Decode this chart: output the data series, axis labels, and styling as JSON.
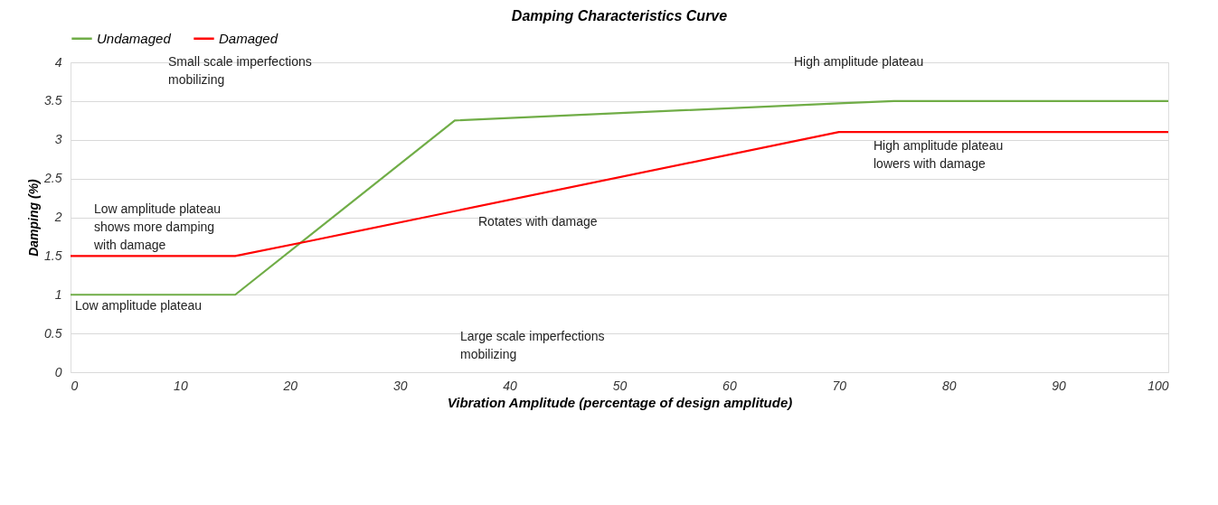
{
  "chart_data": {
    "type": "line",
    "title": "Damping Characteristics Curve",
    "xlabel": "Vibration Amplitude (percentage of design amplitude)",
    "ylabel": "Damping (%)",
    "series": [
      {
        "name": "Undamaged",
        "color": "#70ad47",
        "x": [
          0,
          15,
          35,
          70,
          75,
          100
        ],
        "values": [
          1,
          1,
          3.25,
          3.47,
          3.5,
          3.5
        ]
      },
      {
        "name": "Damaged",
        "color": "#ff0000",
        "x": [
          0,
          15,
          22,
          70,
          100
        ],
        "values": [
          1.5,
          1.5,
          1.7,
          3.1,
          3.1
        ]
      }
    ],
    "xlim": [
      0,
      100
    ],
    "xticks": [
      0,
      10,
      20,
      30,
      40,
      50,
      60,
      70,
      80,
      90,
      100
    ],
    "ylim": [
      0,
      4
    ],
    "yticks": [
      0,
      0.5,
      1,
      1.5,
      2,
      2.5,
      3,
      3.5,
      4
    ],
    "grid": "y",
    "legend": "top",
    "marker": "none",
    "line_style": "solid",
    "annotations": [
      "Small scale imperfections\nmobilizing",
      "High amplitude plateau",
      "High amplitude plateau\nlowers  with damage",
      "Low amplitude plateau\nshows more damping\nwith damage",
      "Rotates with damage",
      "Low amplitude plateau",
      "Large scale imperfections\nmobilizing"
    ]
  }
}
